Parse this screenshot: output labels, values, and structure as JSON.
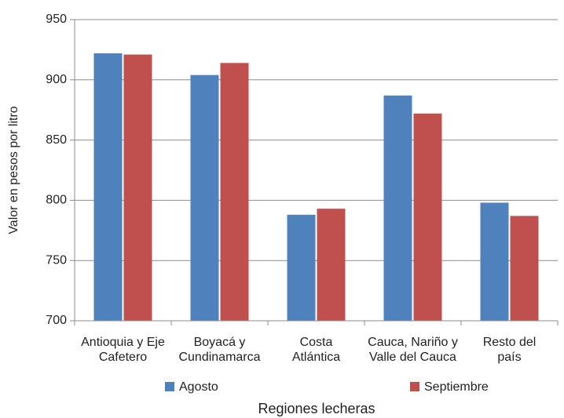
{
  "chart_data": {
    "type": "bar",
    "categories": [
      "Antioquia y Eje\nCafetero",
      "Boyacá y\nCundinamarca",
      "Costa\nAtlántica",
      "Cauca, Nariño y\nValle del Cauca",
      "Resto del\npaís"
    ],
    "series": [
      {
        "name": "Agosto",
        "color": "#4f81bd",
        "values": [
          922,
          904,
          788,
          887,
          798
        ]
      },
      {
        "name": "Septiembre",
        "color": "#c0504d",
        "values": [
          921,
          914,
          793,
          872,
          787
        ]
      }
    ],
    "ylim": [
      700,
      950
    ],
    "yticks": [
      700,
      750,
      800,
      850,
      900,
      950
    ],
    "ylabel": "Valor en pesos por litro",
    "xlabel": "Regiones lecheras",
    "grid": true
  }
}
